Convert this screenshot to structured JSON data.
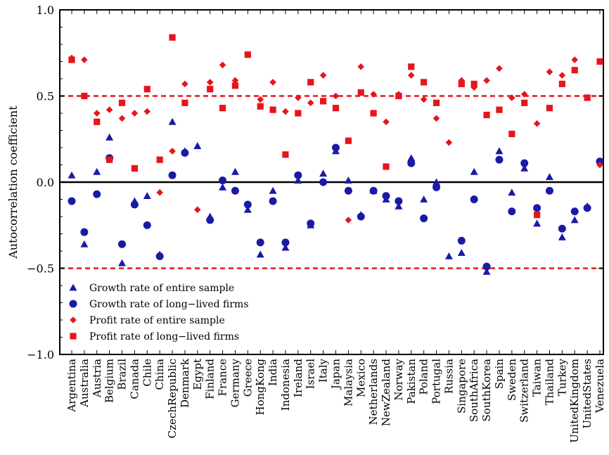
{
  "chart_data": {
    "type": "scatter",
    "ylabel": "Autocorrelation coefficient",
    "ylim": [
      -1.0,
      1.0
    ],
    "yticks": [
      -1.0,
      -0.5,
      0.0,
      0.5,
      1.0
    ],
    "ytick_labels": [
      "−1.0",
      "−0.5",
      "0.0",
      "0.5",
      "1.0"
    ],
    "reference_lines": [
      {
        "y": 0.5,
        "style": "dashed",
        "color": "#e8141b"
      },
      {
        "y": 0.0,
        "style": "solid",
        "color": "#000000"
      },
      {
        "y": -0.5,
        "style": "dashed",
        "color": "#e8141b"
      }
    ],
    "categories": [
      "Argentina",
      "Australia",
      "Austria",
      "Belgium",
      "Brazil",
      "Canada",
      "Chile",
      "China",
      "CzechRepublic",
      "Denmark",
      "Egypt",
      "Finland",
      "France",
      "Germany",
      "Greece",
      "HongKong",
      "India",
      "Indonesia",
      "Ireland",
      "Israel",
      "Italy",
      "Japan",
      "Malaysia",
      "Mexico",
      "Netherlands",
      "NewZealand",
      "Norway",
      "Pakistan",
      "Poland",
      "Portugal",
      "Russia",
      "Singapore",
      "SouthAfrica",
      "SouthKorea",
      "Spain",
      "Sweden",
      "Switzerland",
      "Taiwan",
      "Thailand",
      "Turkey",
      "UnitedKingdom",
      "UnitedStates",
      "Venezuela"
    ],
    "series": [
      {
        "name": "Growth rate of entire sample",
        "marker": "triangle",
        "color": "#1a1aa6",
        "values": [
          0.04,
          -0.36,
          0.06,
          0.26,
          -0.47,
          -0.11,
          -0.08,
          -0.42,
          0.35,
          0.18,
          0.21,
          -0.2,
          -0.03,
          0.06,
          -0.16,
          -0.42,
          -0.05,
          -0.38,
          0.01,
          -0.25,
          0.05,
          0.18,
          0.01,
          -0.19,
          -0.05,
          -0.1,
          -0.14,
          0.14,
          -0.1,
          0.0,
          -0.43,
          -0.41,
          0.06,
          -0.52,
          0.18,
          -0.06,
          0.08,
          -0.24,
          0.03,
          -0.32,
          -0.22,
          -0.14,
          null
        ]
      },
      {
        "name": "Growth rate of long−lived firms",
        "marker": "circle",
        "color": "#1a1aa6",
        "values": [
          -0.11,
          -0.29,
          -0.07,
          0.14,
          -0.36,
          -0.13,
          -0.25,
          -0.43,
          0.04,
          0.17,
          null,
          -0.22,
          0.01,
          -0.05,
          -0.13,
          -0.35,
          -0.11,
          -0.35,
          0.04,
          -0.24,
          0.0,
          0.2,
          -0.05,
          -0.2,
          -0.05,
          -0.08,
          -0.11,
          0.11,
          -0.21,
          -0.03,
          null,
          -0.34,
          -0.1,
          -0.49,
          0.13,
          -0.17,
          0.11,
          -0.15,
          -0.05,
          -0.27,
          -0.17,
          -0.15,
          0.12
        ]
      },
      {
        "name": "Profit rate of entire sample",
        "marker": "diamond",
        "color": "#e8141b",
        "values": [
          0.72,
          0.71,
          0.4,
          0.42,
          0.37,
          0.4,
          0.41,
          -0.06,
          0.18,
          0.57,
          -0.16,
          0.58,
          0.68,
          0.59,
          0.74,
          0.48,
          0.58,
          0.41,
          0.49,
          0.46,
          0.62,
          0.5,
          -0.22,
          0.67,
          0.51,
          0.35,
          0.51,
          0.62,
          0.48,
          0.37,
          0.23,
          0.59,
          0.55,
          0.59,
          0.66,
          0.49,
          0.51,
          0.34,
          0.64,
          0.62,
          0.71,
          null,
          0.1
        ]
      },
      {
        "name": "Profit rate of long−lived firms",
        "marker": "square",
        "color": "#e8141b",
        "values": [
          0.71,
          0.5,
          0.35,
          0.13,
          0.46,
          0.08,
          0.54,
          0.13,
          0.84,
          0.46,
          null,
          0.54,
          0.43,
          0.56,
          0.74,
          0.44,
          0.42,
          0.16,
          0.4,
          0.58,
          0.47,
          0.43,
          0.24,
          0.52,
          0.4,
          0.09,
          0.5,
          0.67,
          0.58,
          0.46,
          null,
          0.57,
          0.57,
          0.39,
          0.42,
          0.28,
          0.46,
          -0.19,
          0.43,
          0.57,
          0.65,
          0.49,
          0.7
        ]
      }
    ],
    "legend": {
      "placement": "bottom-left"
    },
    "grid": false
  }
}
